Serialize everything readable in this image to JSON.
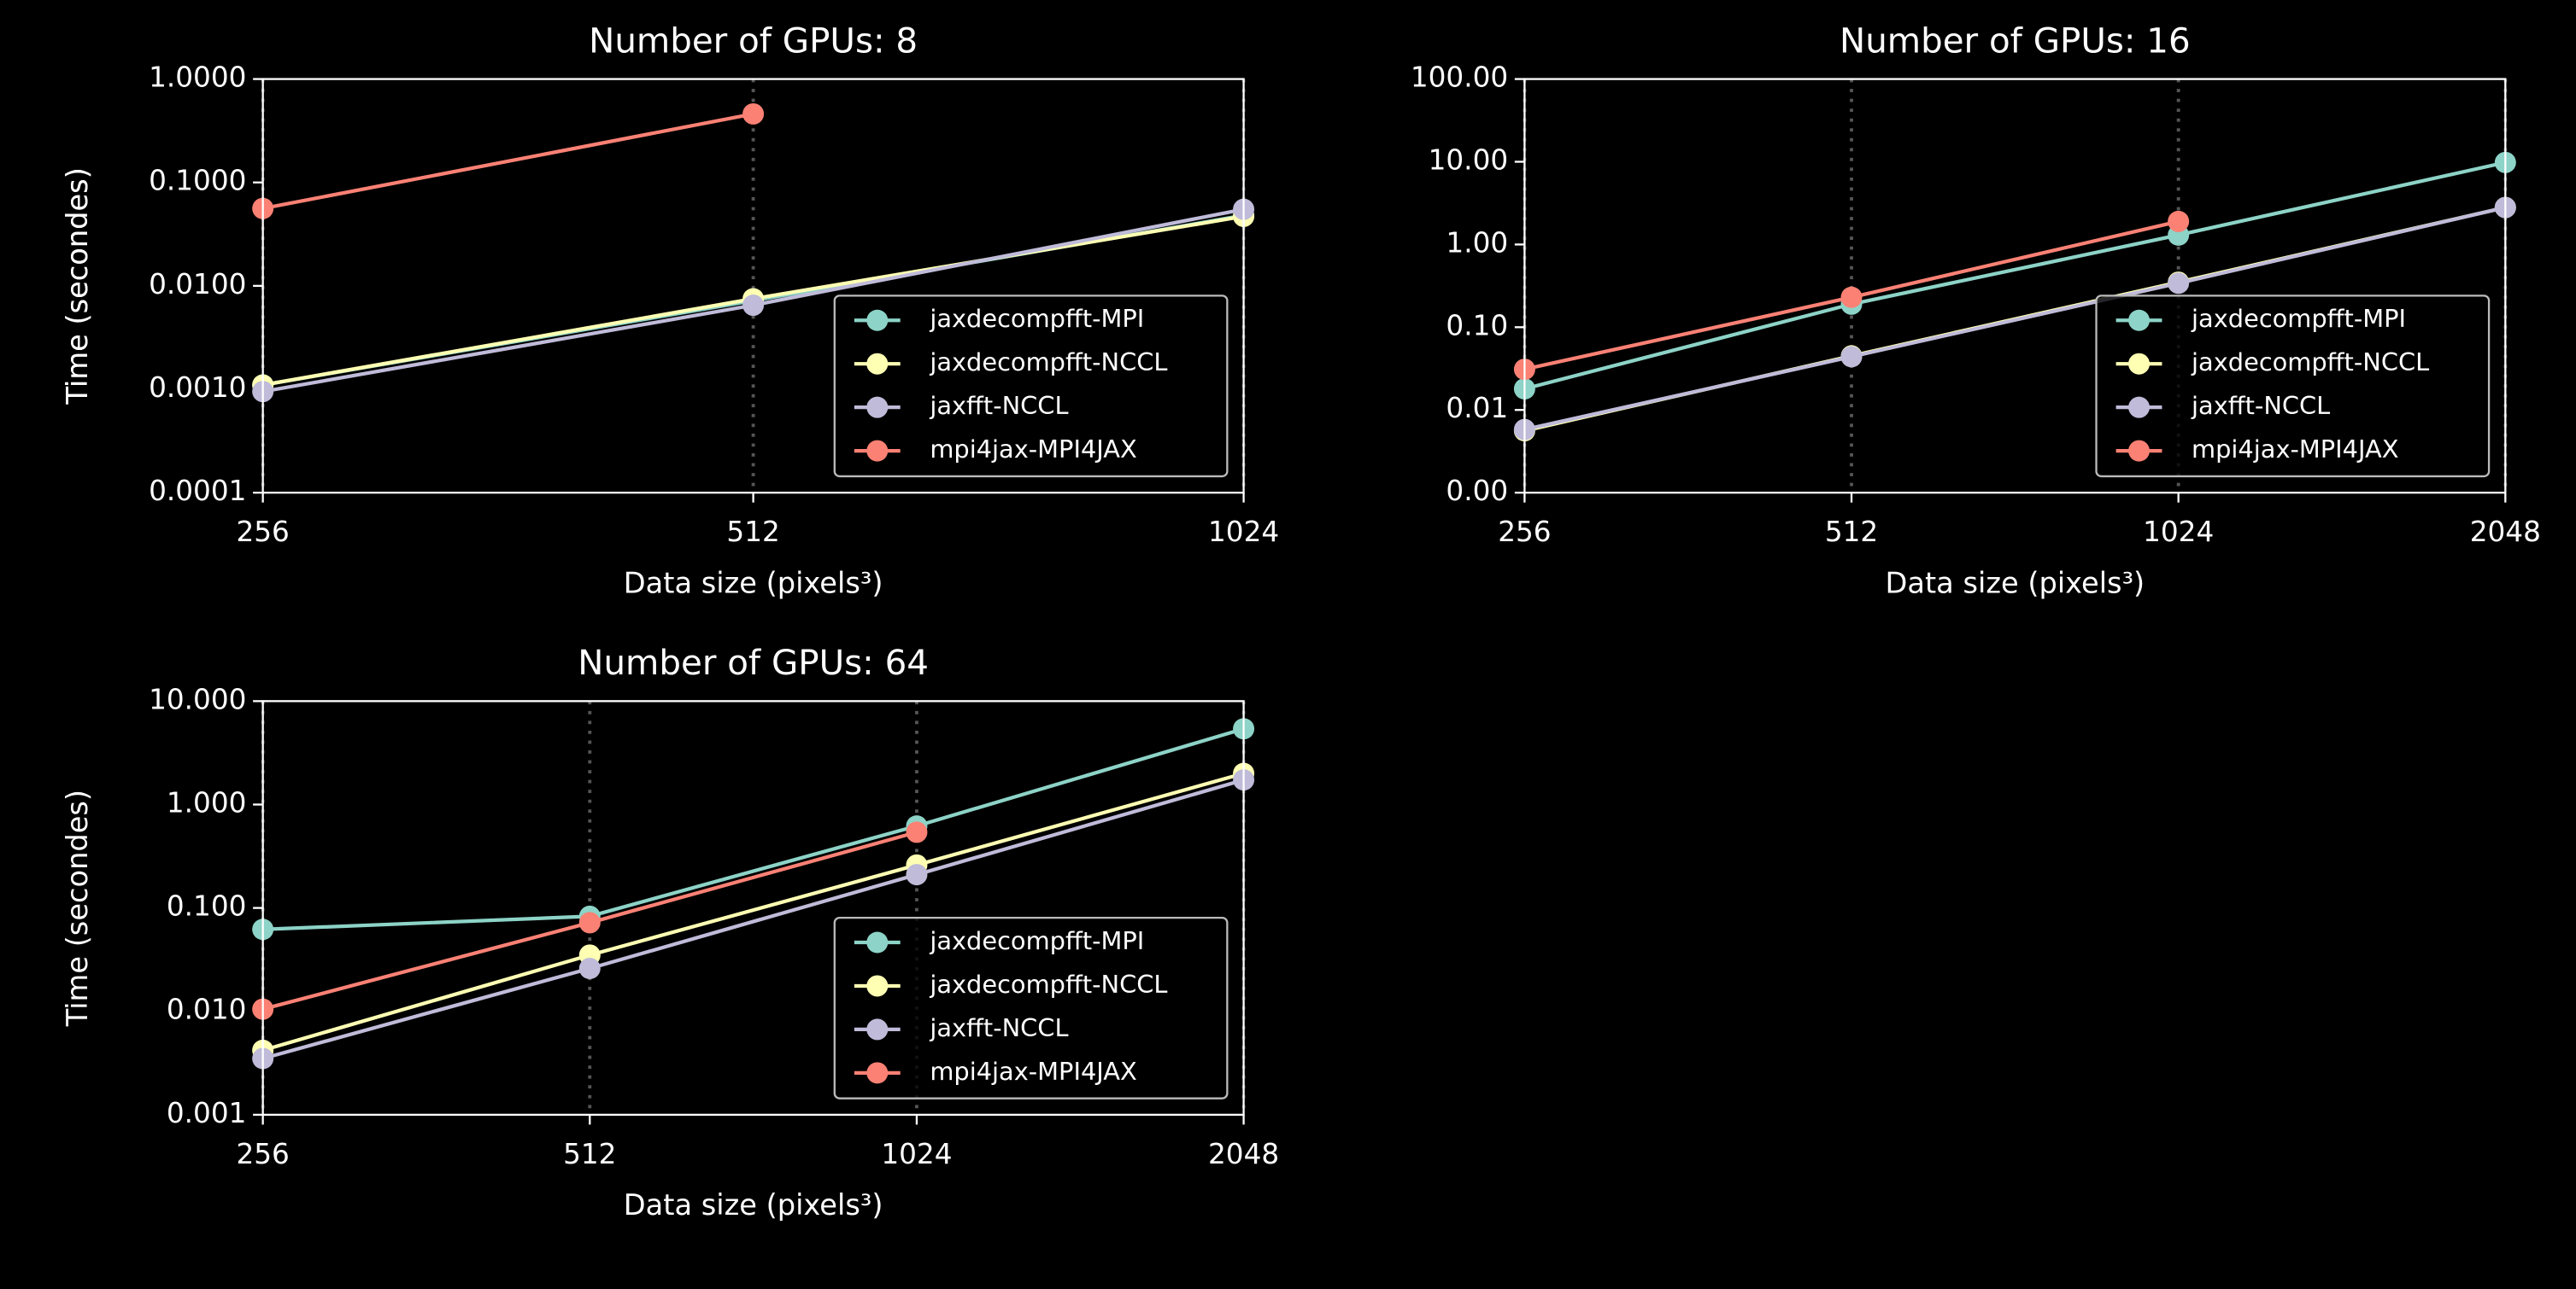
{
  "chart_data": [
    {
      "type": "line",
      "title": "Number of GPUs: 8",
      "xlabel": "Data size (pixels³)",
      "ylabel": "Time (secondes)",
      "xscale": "log",
      "yscale": "log",
      "grid": "x",
      "legend": "lower right",
      "x": [
        256,
        512,
        1024
      ],
      "xlim": [
        256,
        1024
      ],
      "xticks": [
        256,
        512,
        1024
      ],
      "ylim": [
        0.0001,
        1
      ],
      "yticks": [
        {
          "value": 0.0001,
          "label": "0.0001"
        },
        {
          "value": 0.001,
          "label": "0.0010"
        },
        {
          "value": 0.01,
          "label": "0.0100"
        },
        {
          "value": 0.1,
          "label": "0.1000"
        },
        {
          "value": 1,
          "label": "1.0000"
        }
      ],
      "series": [
        {
          "name": "jaxdecompfft-MPI",
          "color": "#8dd3c7",
          "values": [
            0.0011,
            0.0072,
            0.048
          ]
        },
        {
          "name": "jaxdecompfft-NCCL",
          "color": "#feffb3",
          "values": [
            0.0011,
            0.0075,
            0.047
          ]
        },
        {
          "name": "jaxfft-NCCL",
          "color": "#bfbbd9",
          "values": [
            0.00095,
            0.0065,
            0.055
          ]
        },
        {
          "name": "mpi4jax-MPI4JAX",
          "color": "#fa8174",
          "values": [
            0.056,
            0.46,
            null
          ]
        }
      ]
    },
    {
      "type": "line",
      "title": "Number of GPUs: 16",
      "xlabel": "Data size (pixels³)",
      "ylabel": "Time (secondes)",
      "xscale": "log",
      "yscale": "log",
      "grid": "x",
      "legend": "lower right",
      "x": [
        256,
        512,
        1024,
        2048
      ],
      "xlim": [
        256,
        2048
      ],
      "xticks": [
        256,
        512,
        1024,
        2048
      ],
      "ylim": [
        0.001,
        100
      ],
      "yticks": [
        {
          "value": 0.001,
          "label": "0.00"
        },
        {
          "value": 0.01,
          "label": "0.01"
        },
        {
          "value": 0.1,
          "label": "0.10"
        },
        {
          "value": 1,
          "label": "1.00"
        },
        {
          "value": 10,
          "label": "10.00"
        },
        {
          "value": 100,
          "label": "100.00"
        }
      ],
      "series": [
        {
          "name": "jaxdecompfft-MPI",
          "color": "#8dd3c7",
          "values": [
            0.018,
            0.19,
            1.3,
            9.8
          ]
        },
        {
          "name": "jaxdecompfft-NCCL",
          "color": "#feffb3",
          "values": [
            0.0056,
            0.045,
            0.35,
            2.8
          ]
        },
        {
          "name": "jaxfft-NCCL",
          "color": "#bfbbd9",
          "values": [
            0.0058,
            0.044,
            0.34,
            2.8
          ]
        },
        {
          "name": "mpi4jax-MPI4JAX",
          "color": "#fa8174",
          "values": [
            0.031,
            0.23,
            1.9,
            null
          ]
        }
      ]
    },
    {
      "type": "line",
      "title": "Number of GPUs: 64",
      "xlabel": "Data size (pixels³)",
      "ylabel": "Time (secondes)",
      "xscale": "log",
      "yscale": "log",
      "grid": "x",
      "legend": "lower right",
      "x": [
        256,
        512,
        1024,
        2048
      ],
      "xlim": [
        256,
        2048
      ],
      "xticks": [
        256,
        512,
        1024,
        2048
      ],
      "ylim": [
        0.001,
        10
      ],
      "yticks": [
        {
          "value": 0.001,
          "label": "0.001"
        },
        {
          "value": 0.01,
          "label": "0.010"
        },
        {
          "value": 0.1,
          "label": "0.100"
        },
        {
          "value": 1,
          "label": "1.000"
        },
        {
          "value": 10,
          "label": "10.000"
        }
      ],
      "series": [
        {
          "name": "jaxdecompfft-MPI",
          "color": "#8dd3c7",
          "values": [
            0.062,
            0.083,
            0.62,
            5.4
          ]
        },
        {
          "name": "jaxdecompfft-NCCL",
          "color": "#feffb3",
          "values": [
            0.0042,
            0.035,
            0.26,
            2.0
          ]
        },
        {
          "name": "jaxfft-NCCL",
          "color": "#bfbbd9",
          "values": [
            0.0035,
            0.026,
            0.21,
            1.73
          ]
        },
        {
          "name": "mpi4jax-MPI4JAX",
          "color": "#fa8174",
          "values": [
            0.0105,
            0.072,
            0.54,
            null
          ]
        }
      ]
    }
  ]
}
